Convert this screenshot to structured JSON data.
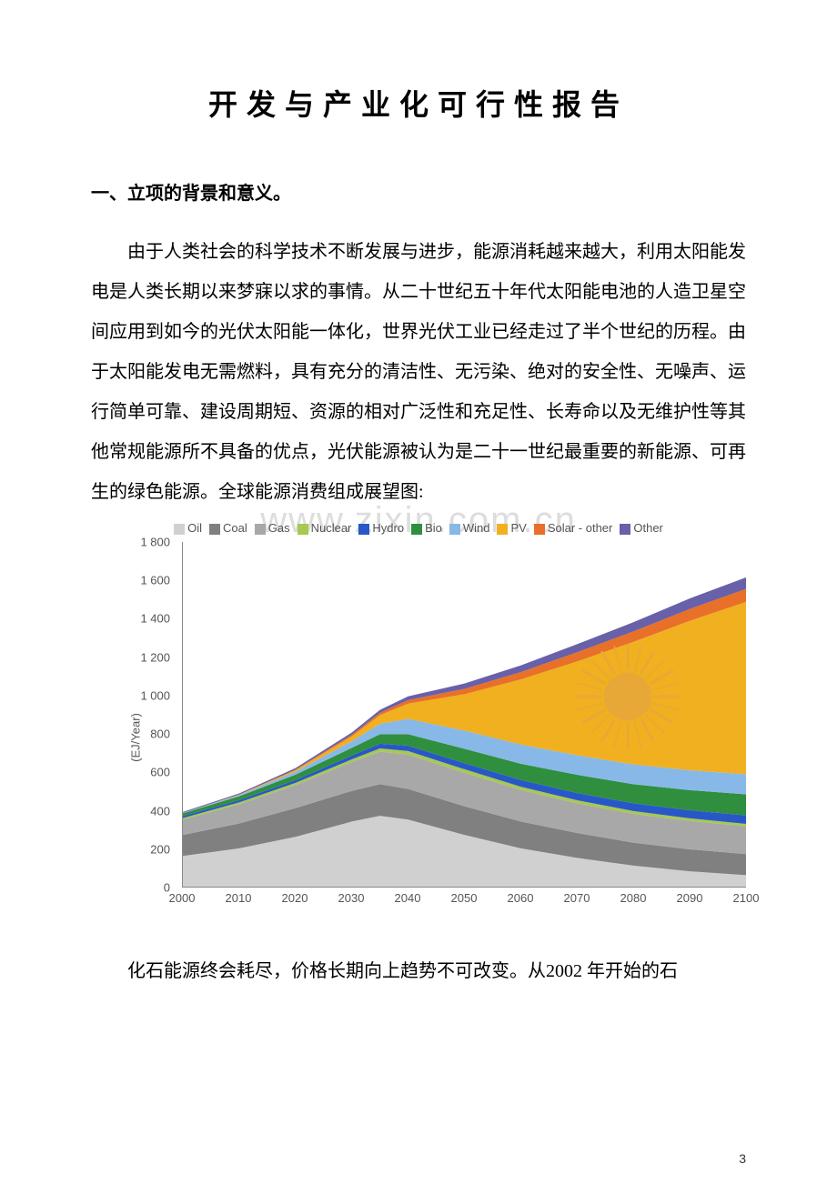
{
  "title": "开发与产业化可行性报告",
  "section_heading": "一、立项的背景和意义。",
  "paragraph1": "由于人类社会的科学技术不断发展与进步，能源消耗越来越大，利用太阳能发电是人类长期以来梦寐以求的事情。从二十世纪五十年代太阳能电池的人造卫星空间应用到如今的光伏太阳能一体化，世界光伏工业已经走过了半个世纪的历程。由于太阳能发电无需燃料，具有充分的清洁性、无污染、绝对的安全性、无噪声、运行简单可靠、建设周期短、资源的相对广泛性和充足性、长寿命以及无维护性等其他常规能源所不具备的优点，光伏能源被认为是二十一世纪最重要的新能源、可再生的绿色能源。全球能源消费组成展望图:",
  "paragraph2": "化石能源终会耗尽，价格长期向上趋势不可改变。从2002 年开始的石",
  "watermark": "www.zixin.com.cn",
  "page_number": "3",
  "chart": {
    "type": "stacked-area",
    "y_label": "(EJ/Year)",
    "y_ticks": [
      0,
      200,
      400,
      600,
      800,
      1000,
      1200,
      1400,
      1600,
      1800
    ],
    "y_max": 1800,
    "x_ticks": [
      2000,
      2010,
      2020,
      2030,
      2040,
      2050,
      2060,
      2070,
      2080,
      2090,
      2100
    ],
    "x_min": 2000,
    "x_max": 2100,
    "background_color": "#ffffff",
    "axis_color": "#888888",
    "tick_font_size": 13,
    "tick_color": "#555555",
    "sun_color": "#e8a838",
    "legend": [
      {
        "label": "Oil",
        "color": "#d0d0d0"
      },
      {
        "label": "Coal",
        "color": "#808080"
      },
      {
        "label": "Gas",
        "color": "#a8a8a8"
      },
      {
        "label": "Nuclear",
        "color": "#a8c850"
      },
      {
        "label": "Hydro",
        "color": "#2858c8"
      },
      {
        "label": "Bio",
        "color": "#2f8f3f"
      },
      {
        "label": "Wind",
        "color": "#88b8e8"
      },
      {
        "label": "PV",
        "color": "#f0b020"
      },
      {
        "label": "Solar - other",
        "color": "#e87028"
      },
      {
        "label": "Other",
        "color": "#6860a8"
      }
    ],
    "x_values": [
      2000,
      2010,
      2020,
      2030,
      2035,
      2040,
      2050,
      2060,
      2070,
      2080,
      2090,
      2100
    ],
    "series": [
      {
        "name": "Oil",
        "color": "#d0d0d0",
        "vals": [
          160,
          200,
          260,
          340,
          370,
          350,
          270,
          200,
          150,
          110,
          80,
          60
        ]
      },
      {
        "name": "Coal",
        "color": "#808080",
        "vals": [
          110,
          130,
          150,
          160,
          165,
          160,
          150,
          140,
          130,
          120,
          115,
          110
        ]
      },
      {
        "name": "Gas",
        "color": "#a8a8a8",
        "vals": [
          80,
          100,
          120,
          150,
          170,
          180,
          175,
          165,
          155,
          150,
          148,
          145
        ]
      },
      {
        "name": "Nuclear",
        "color": "#a8c850",
        "vals": [
          8,
          10,
          12,
          15,
          17,
          18,
          18,
          17,
          16,
          15,
          14,
          13
        ]
      },
      {
        "name": "Hydro",
        "color": "#2858c8",
        "vals": [
          10,
          12,
          15,
          20,
          24,
          28,
          32,
          35,
          38,
          40,
          42,
          44
        ]
      },
      {
        "name": "Bio",
        "color": "#2f8f3f",
        "vals": [
          15,
          20,
          28,
          40,
          50,
          60,
          75,
          85,
          95,
          100,
          105,
          110
        ]
      },
      {
        "name": "Wind",
        "color": "#88b8e8",
        "vals": [
          2,
          6,
          15,
          35,
          55,
          80,
          95,
          100,
          102,
          103,
          104,
          105
        ]
      },
      {
        "name": "PV",
        "color": "#f0b020",
        "vals": [
          0,
          2,
          8,
          25,
          45,
          80,
          190,
          340,
          490,
          640,
          780,
          900
        ]
      },
      {
        "name": "Solar-other",
        "color": "#e87028",
        "vals": [
          0,
          1,
          3,
          8,
          12,
          18,
          28,
          38,
          48,
          55,
          62,
          68
        ]
      },
      {
        "name": "Other",
        "color": "#6860a8",
        "vals": [
          5,
          6,
          8,
          12,
          15,
          20,
          28,
          35,
          42,
          48,
          55,
          60
        ]
      }
    ]
  }
}
